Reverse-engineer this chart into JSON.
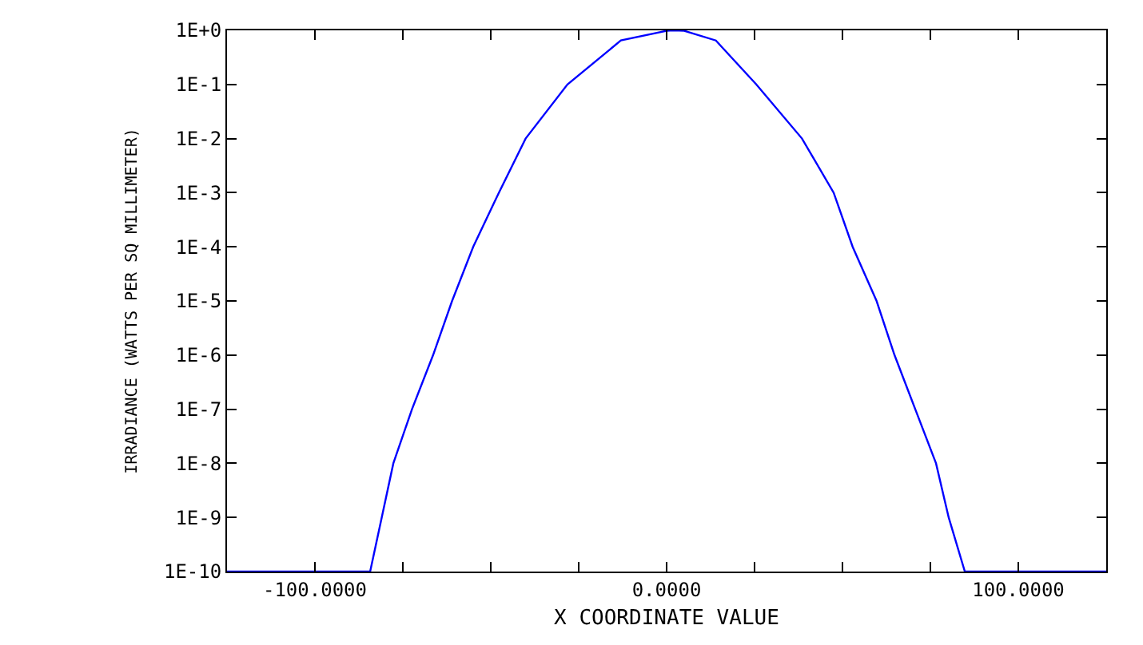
{
  "chart_data": {
    "type": "line",
    "xlabel": "X COORDINATE VALUE",
    "ylabel": "IRRADIANCE (WATTS PER SQ MILLIMETER)",
    "log": "y",
    "grid": false,
    "legend": false,
    "marker": "none",
    "line_style": "solid",
    "xlim": [
      -125,
      125
    ],
    "xticks": [
      {
        "value": -100,
        "label": "-100.0000"
      },
      {
        "value": -75,
        "label": null
      },
      {
        "value": -50,
        "label": null
      },
      {
        "value": -25,
        "label": null
      },
      {
        "value": 0,
        "label": "0.0000"
      },
      {
        "value": 25,
        "label": null
      },
      {
        "value": 50,
        "label": null
      },
      {
        "value": 75,
        "label": null
      },
      {
        "value": 100,
        "label": "100.0000"
      }
    ],
    "ylim": [
      1e-10,
      1
    ],
    "yticks": [
      {
        "value": 1e-10,
        "label": "1E-10"
      },
      {
        "value": 1e-09,
        "label": "1E-9"
      },
      {
        "value": 1e-08,
        "label": "1E-8"
      },
      {
        "value": 1e-07,
        "label": "1E-7"
      },
      {
        "value": 1e-06,
        "label": "1E-6"
      },
      {
        "value": 1e-05,
        "label": "1E-5"
      },
      {
        "value": 0.0001,
        "label": "1E-4"
      },
      {
        "value": 0.001,
        "label": "1E-3"
      },
      {
        "value": 0.01,
        "label": "1E-2"
      },
      {
        "value": 0.1,
        "label": "1E-1"
      },
      {
        "value": 1,
        "label": "1E+0"
      }
    ],
    "series": [
      {
        "color": "#0000ff",
        "x": [
          -125,
          -84.3,
          -81,
          -77.7,
          -72.4,
          -66.4,
          -61,
          -55,
          -47.7,
          -40.1,
          -28.2,
          -13,
          0,
          2,
          5,
          14,
          25.5,
          38.5,
          47.5,
          52.9,
          59.7,
          64.8,
          70.7,
          76.6,
          80.2,
          84.8,
          125
        ],
        "values": [
          1e-10,
          1e-10,
          1e-09,
          1e-08,
          1e-07,
          1e-06,
          1e-05,
          0.0001,
          0.001,
          0.01,
          0.1,
          0.65,
          0.98,
          1,
          0.98,
          0.65,
          0.1,
          0.01,
          0.001,
          0.0001,
          1e-05,
          1e-06,
          1e-07,
          1e-08,
          1e-09,
          1e-10,
          1e-10
        ]
      }
    ]
  }
}
